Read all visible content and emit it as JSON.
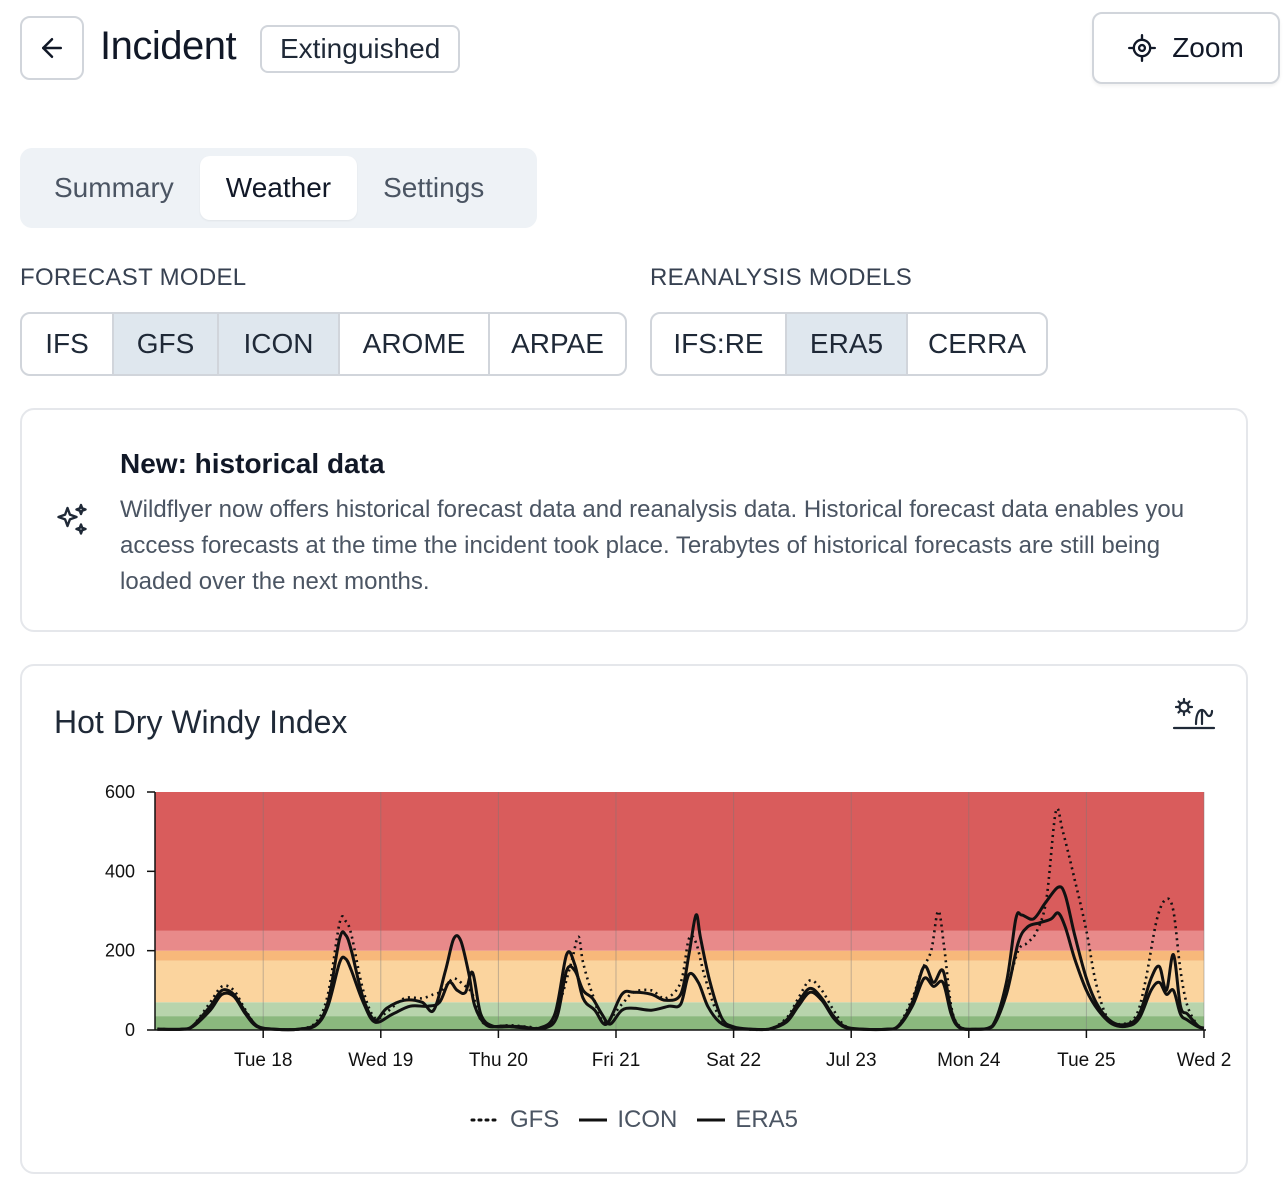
{
  "header": {
    "title": "Incident",
    "status": "Extinguished",
    "zoom_label": "Zoom"
  },
  "tabs": [
    {
      "label": "Summary",
      "active": false
    },
    {
      "label": "Weather",
      "active": true
    },
    {
      "label": "Settings",
      "active": false
    }
  ],
  "forecast": {
    "label": "FORECAST MODEL",
    "options": [
      {
        "label": "IFS",
        "selected": false
      },
      {
        "label": "GFS",
        "selected": true
      },
      {
        "label": "ICON",
        "selected": true
      },
      {
        "label": "AROME",
        "selected": false
      },
      {
        "label": "ARPAE",
        "selected": false
      }
    ]
  },
  "reanalysis": {
    "label": "REANALYSIS MODELS",
    "options": [
      {
        "label": "IFS:RE",
        "selected": false
      },
      {
        "label": "ERA5",
        "selected": true
      },
      {
        "label": "CERRA",
        "selected": false
      }
    ]
  },
  "notice": {
    "title": "New: historical data",
    "body": "Wildflyer now offers historical forecast data and reanalysis data. Historical forecast data enables you access forecasts at the time the incident took place. Terabytes of historical forecasts are still being loaded over the next months."
  },
  "chart_data": {
    "type": "line",
    "title": "Hot Dry Windy Index",
    "ylim": [
      0,
      600
    ],
    "yticks": [
      0,
      200,
      400,
      600
    ],
    "x_ticks": [
      {
        "day": 1,
        "label": "Tue 18"
      },
      {
        "day": 2,
        "label": "Wed 19"
      },
      {
        "day": 3,
        "label": "Thu 20"
      },
      {
        "day": 4,
        "label": "Fri 21"
      },
      {
        "day": 5,
        "label": "Sat 22"
      },
      {
        "day": 6,
        "label": "Jul 23"
      },
      {
        "day": 7,
        "label": "Mon 24"
      },
      {
        "day": 8,
        "label": "Tue 25"
      },
      {
        "day": 9,
        "label": "Wed 2"
      }
    ],
    "xlim": [
      0.08,
      9.0
    ],
    "bands": [
      {
        "from": 0,
        "to": 35,
        "color": "#8bb87e"
      },
      {
        "from": 35,
        "to": 70,
        "color": "#b8d4ac"
      },
      {
        "from": 70,
        "to": 175,
        "color": "#fbd49e"
      },
      {
        "from": 175,
        "to": 200,
        "color": "#f7b87a"
      },
      {
        "from": 200,
        "to": 250,
        "color": "#e88a8a"
      },
      {
        "from": 250,
        "to": 600,
        "color": "#d95c5c"
      }
    ],
    "series": [
      {
        "name": "GFS",
        "style": "dotted",
        "points": [
          [
            0.1,
            3
          ],
          [
            0.3,
            2
          ],
          [
            0.4,
            10
          ],
          [
            0.55,
            70
          ],
          [
            0.65,
            110
          ],
          [
            0.75,
            100
          ],
          [
            0.85,
            50
          ],
          [
            0.95,
            10
          ],
          [
            1.1,
            2
          ],
          [
            1.3,
            2
          ],
          [
            1.45,
            20
          ],
          [
            1.55,
            90
          ],
          [
            1.65,
            270
          ],
          [
            1.7,
            275
          ],
          [
            1.75,
            240
          ],
          [
            1.85,
            100
          ],
          [
            1.95,
            30
          ],
          [
            2.05,
            45
          ],
          [
            2.2,
            80
          ],
          [
            2.35,
            80
          ],
          [
            2.45,
            90
          ],
          [
            2.5,
            95
          ],
          [
            2.55,
            110
          ],
          [
            2.62,
            130
          ],
          [
            2.7,
            115
          ],
          [
            2.78,
            90
          ],
          [
            2.85,
            25
          ],
          [
            2.95,
            10
          ],
          [
            3.1,
            12
          ],
          [
            3.25,
            8
          ],
          [
            3.4,
            6
          ],
          [
            3.5,
            50
          ],
          [
            3.62,
            170
          ],
          [
            3.68,
            235
          ],
          [
            3.72,
            170
          ],
          [
            3.8,
            90
          ],
          [
            3.9,
            20
          ],
          [
            4.05,
            65
          ],
          [
            4.15,
            95
          ],
          [
            4.3,
            100
          ],
          [
            4.42,
            80
          ],
          [
            4.55,
            120
          ],
          [
            4.62,
            230
          ],
          [
            4.68,
            220
          ],
          [
            4.75,
            140
          ],
          [
            4.85,
            50
          ],
          [
            4.95,
            12
          ],
          [
            5.1,
            2
          ],
          [
            5.3,
            2
          ],
          [
            5.45,
            30
          ],
          [
            5.55,
            80
          ],
          [
            5.65,
            125
          ],
          [
            5.75,
            100
          ],
          [
            5.85,
            50
          ],
          [
            5.95,
            10
          ],
          [
            6.1,
            2
          ],
          [
            6.3,
            2
          ],
          [
            6.4,
            10
          ],
          [
            6.52,
            80
          ],
          [
            6.6,
            150
          ],
          [
            6.68,
            200
          ],
          [
            6.74,
            300
          ],
          [
            6.79,
            210
          ],
          [
            6.85,
            60
          ],
          [
            6.92,
            10
          ],
          [
            7.05,
            2
          ],
          [
            7.2,
            10
          ],
          [
            7.32,
            100
          ],
          [
            7.42,
            200
          ],
          [
            7.5,
            220
          ],
          [
            7.58,
            250
          ],
          [
            7.66,
            330
          ],
          [
            7.74,
            550
          ],
          [
            7.8,
            500
          ],
          [
            7.9,
            380
          ],
          [
            8.0,
            250
          ],
          [
            8.08,
            120
          ],
          [
            8.18,
            30
          ],
          [
            8.3,
            15
          ],
          [
            8.42,
            35
          ],
          [
            8.5,
            120
          ],
          [
            8.6,
            280
          ],
          [
            8.68,
            330
          ],
          [
            8.74,
            300
          ],
          [
            8.8,
            150
          ],
          [
            8.86,
            60
          ],
          [
            8.95,
            10
          ],
          [
            9.0,
            5
          ]
        ]
      },
      {
        "name": "ICON",
        "style": "solid",
        "points": [
          [
            0.1,
            2
          ],
          [
            0.3,
            2
          ],
          [
            0.4,
            10
          ],
          [
            0.55,
            60
          ],
          [
            0.65,
            100
          ],
          [
            0.75,
            90
          ],
          [
            0.85,
            45
          ],
          [
            0.95,
            10
          ],
          [
            1.1,
            2
          ],
          [
            1.3,
            2
          ],
          [
            1.45,
            15
          ],
          [
            1.55,
            70
          ],
          [
            1.65,
            230
          ],
          [
            1.7,
            240
          ],
          [
            1.75,
            200
          ],
          [
            1.85,
            80
          ],
          [
            1.95,
            25
          ],
          [
            2.05,
            55
          ],
          [
            2.2,
            75
          ],
          [
            2.35,
            70
          ],
          [
            2.45,
            50
          ],
          [
            2.55,
            150
          ],
          [
            2.62,
            230
          ],
          [
            2.68,
            225
          ],
          [
            2.75,
            140
          ],
          [
            2.8,
            60
          ],
          [
            2.9,
            12
          ],
          [
            3.05,
            10
          ],
          [
            3.2,
            8
          ],
          [
            3.35,
            5
          ],
          [
            3.48,
            40
          ],
          [
            3.58,
            190
          ],
          [
            3.65,
            165
          ],
          [
            3.72,
            80
          ],
          [
            3.82,
            50
          ],
          [
            3.92,
            15
          ],
          [
            4.05,
            90
          ],
          [
            4.15,
            95
          ],
          [
            4.3,
            90
          ],
          [
            4.42,
            75
          ],
          [
            4.55,
            90
          ],
          [
            4.62,
            190
          ],
          [
            4.68,
            290
          ],
          [
            4.72,
            230
          ],
          [
            4.8,
            120
          ],
          [
            4.9,
            30
          ],
          [
            5.0,
            8
          ],
          [
            5.15,
            2
          ],
          [
            5.3,
            2
          ],
          [
            5.45,
            25
          ],
          [
            5.55,
            70
          ],
          [
            5.65,
            105
          ],
          [
            5.75,
            80
          ],
          [
            5.85,
            35
          ],
          [
            5.95,
            8
          ],
          [
            6.1,
            2
          ],
          [
            6.3,
            2
          ],
          [
            6.4,
            10
          ],
          [
            6.52,
            70
          ],
          [
            6.62,
            160
          ],
          [
            6.7,
            120
          ],
          [
            6.78,
            150
          ],
          [
            6.85,
            50
          ],
          [
            6.92,
            8
          ],
          [
            7.05,
            2
          ],
          [
            7.2,
            10
          ],
          [
            7.32,
            120
          ],
          [
            7.4,
            280
          ],
          [
            7.45,
            290
          ],
          [
            7.55,
            280
          ],
          [
            7.65,
            320
          ],
          [
            7.76,
            360
          ],
          [
            7.82,
            340
          ],
          [
            7.9,
            240
          ],
          [
            8.0,
            130
          ],
          [
            8.1,
            60
          ],
          [
            8.22,
            20
          ],
          [
            8.35,
            15
          ],
          [
            8.45,
            40
          ],
          [
            8.55,
            130
          ],
          [
            8.62,
            160
          ],
          [
            8.68,
            100
          ],
          [
            8.74,
            190
          ],
          [
            8.8,
            60
          ],
          [
            8.86,
            40
          ],
          [
            8.95,
            10
          ],
          [
            9.0,
            5
          ]
        ]
      },
      {
        "name": "ERA5",
        "style": "solid",
        "points": [
          [
            0.1,
            2
          ],
          [
            0.3,
            2
          ],
          [
            0.4,
            8
          ],
          [
            0.55,
            50
          ],
          [
            0.65,
            90
          ],
          [
            0.75,
            85
          ],
          [
            0.85,
            40
          ],
          [
            0.95,
            8
          ],
          [
            1.1,
            2
          ],
          [
            1.3,
            2
          ],
          [
            1.45,
            12
          ],
          [
            1.55,
            60
          ],
          [
            1.65,
            170
          ],
          [
            1.7,
            180
          ],
          [
            1.75,
            150
          ],
          [
            1.85,
            70
          ],
          [
            1.95,
            20
          ],
          [
            2.1,
            40
          ],
          [
            2.25,
            60
          ],
          [
            2.4,
            60
          ],
          [
            2.5,
            70
          ],
          [
            2.58,
            120
          ],
          [
            2.65,
            100
          ],
          [
            2.72,
            95
          ],
          [
            2.78,
            145
          ],
          [
            2.85,
            40
          ],
          [
            2.95,
            10
          ],
          [
            3.1,
            8
          ],
          [
            3.25,
            5
          ],
          [
            3.4,
            5
          ],
          [
            3.5,
            35
          ],
          [
            3.58,
            150
          ],
          [
            3.65,
            150
          ],
          [
            3.72,
            100
          ],
          [
            3.8,
            80
          ],
          [
            3.88,
            40
          ],
          [
            3.95,
            15
          ],
          [
            4.05,
            50
          ],
          [
            4.15,
            55
          ],
          [
            4.3,
            50
          ],
          [
            4.45,
            60
          ],
          [
            4.55,
            65
          ],
          [
            4.62,
            140
          ],
          [
            4.7,
            120
          ],
          [
            4.78,
            60
          ],
          [
            4.88,
            20
          ],
          [
            5.0,
            5
          ],
          [
            5.15,
            2
          ],
          [
            5.3,
            2
          ],
          [
            5.45,
            20
          ],
          [
            5.55,
            60
          ],
          [
            5.65,
            95
          ],
          [
            5.75,
            75
          ],
          [
            5.85,
            30
          ],
          [
            5.95,
            6
          ],
          [
            6.1,
            2
          ],
          [
            6.3,
            2
          ],
          [
            6.4,
            8
          ],
          [
            6.52,
            60
          ],
          [
            6.62,
            130
          ],
          [
            6.7,
            110
          ],
          [
            6.78,
            120
          ],
          [
            6.85,
            40
          ],
          [
            6.92,
            6
          ],
          [
            7.05,
            2
          ],
          [
            7.2,
            8
          ],
          [
            7.32,
            90
          ],
          [
            7.42,
            220
          ],
          [
            7.5,
            260
          ],
          [
            7.6,
            270
          ],
          [
            7.7,
            280
          ],
          [
            7.76,
            295
          ],
          [
            7.82,
            260
          ],
          [
            7.9,
            180
          ],
          [
            8.0,
            100
          ],
          [
            8.1,
            50
          ],
          [
            8.22,
            15
          ],
          [
            8.35,
            10
          ],
          [
            8.45,
            30
          ],
          [
            8.55,
            100
          ],
          [
            8.62,
            120
          ],
          [
            8.68,
            90
          ],
          [
            8.74,
            100
          ],
          [
            8.8,
            40
          ],
          [
            8.86,
            25
          ],
          [
            8.95,
            8
          ],
          [
            9.0,
            4
          ]
        ]
      }
    ],
    "legend": [
      "GFS",
      "ICON",
      "ERA5"
    ]
  }
}
